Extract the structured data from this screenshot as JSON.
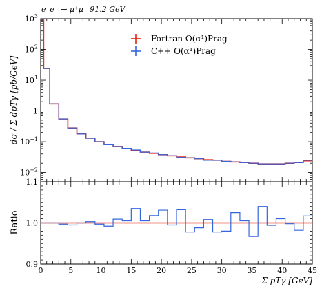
{
  "chart_data": [
    {
      "type": "line",
      "title": "e⁺e⁻ → μ⁺μ⁻ 91.2 GeV",
      "ylabel": "dσ / Σ dpTγ [pb/GeV]",
      "y_scale": "log",
      "ylim": [
        0.005,
        1000
      ],
      "y_ticks": [
        {
          "value": 0.01,
          "base": "10",
          "exp": "−2"
        },
        {
          "value": 0.1,
          "base": "10",
          "exp": "−1"
        },
        {
          "value": 1,
          "base": "1",
          "exp": ""
        },
        {
          "value": 10,
          "base": "10",
          "exp": "1"
        },
        {
          "value": 100,
          "base": "10",
          "exp": "2"
        },
        {
          "value": 1000,
          "base": "10",
          "exp": "3"
        }
      ],
      "xlim": [
        0,
        45
      ],
      "legend_placement": "top-center",
      "bin_edges": [
        0,
        0.5,
        1.5,
        3,
        4.5,
        6,
        7.5,
        9,
        10.5,
        12,
        13.5,
        15,
        16.5,
        18,
        19.5,
        21,
        22.5,
        24,
        25.5,
        27,
        28.5,
        30,
        31.5,
        33,
        34.5,
        36,
        37.5,
        39,
        40.5,
        42,
        43.5,
        45
      ],
      "series": [
        {
          "name": "Fortran O(α¹)Prag",
          "color": "#e8220e",
          "values": [
            900,
            24,
            1.7,
            0.55,
            0.28,
            0.18,
            0.13,
            0.1,
            0.082,
            0.07,
            0.06,
            0.052,
            0.046,
            0.042,
            0.038,
            0.035,
            0.032,
            0.03,
            0.028,
            0.026,
            0.025,
            0.023,
            0.022,
            0.021,
            0.02,
            0.019,
            0.019,
            0.019,
            0.02,
            0.021,
            0.024
          ]
        },
        {
          "name": "C++ O(α¹)Prag",
          "color": "#3366dd",
          "values": [
            900,
            24,
            1.7,
            0.55,
            0.28,
            0.18,
            0.13,
            0.1,
            0.08,
            0.07,
            0.061,
            0.054,
            0.046,
            0.043,
            0.038,
            0.035,
            0.031,
            0.03,
            0.028,
            0.025,
            0.025,
            0.023,
            0.022,
            0.021,
            0.02,
            0.019,
            0.019,
            0.019,
            0.02,
            0.021,
            0.025
          ]
        }
      ]
    },
    {
      "type": "line",
      "ylabel": "Ratio",
      "xlabel": "Σ pTγ [GeV]",
      "ylim": [
        0.9,
        1.1
      ],
      "y_ticks": [
        "0.9",
        "1.0",
        "1.1"
      ],
      "xlim": [
        0,
        45
      ],
      "x_ticks": [
        "0",
        "5",
        "10",
        "15",
        "20",
        "25",
        "30",
        "35",
        "40",
        "45"
      ],
      "bin_edges": [
        0,
        0.5,
        1.5,
        3,
        4.5,
        6,
        7.5,
        9,
        10.5,
        12,
        13.5,
        15,
        16.5,
        18,
        19.5,
        21,
        22.5,
        24,
        25.5,
        27,
        28.5,
        30,
        31.5,
        33,
        34.5,
        36,
        37.5,
        39,
        40.5,
        42,
        43.5,
        45
      ],
      "reference": {
        "value": 1.0,
        "color": "#e8220e"
      },
      "series": [
        {
          "color": "#3366dd",
          "values": [
            1.0,
            1.0,
            1.0,
            0.997,
            0.995,
            1.0,
            1.003,
            0.997,
            0.992,
            1.009,
            1.005,
            1.035,
            1.005,
            1.018,
            1.031,
            0.995,
            1.032,
            0.978,
            0.988,
            1.008,
            0.978,
            0.98,
            1.025,
            1.005,
            0.967,
            1.04,
            0.994,
            1.01,
            0.998,
            0.982,
            1.017
          ]
        }
      ]
    }
  ]
}
